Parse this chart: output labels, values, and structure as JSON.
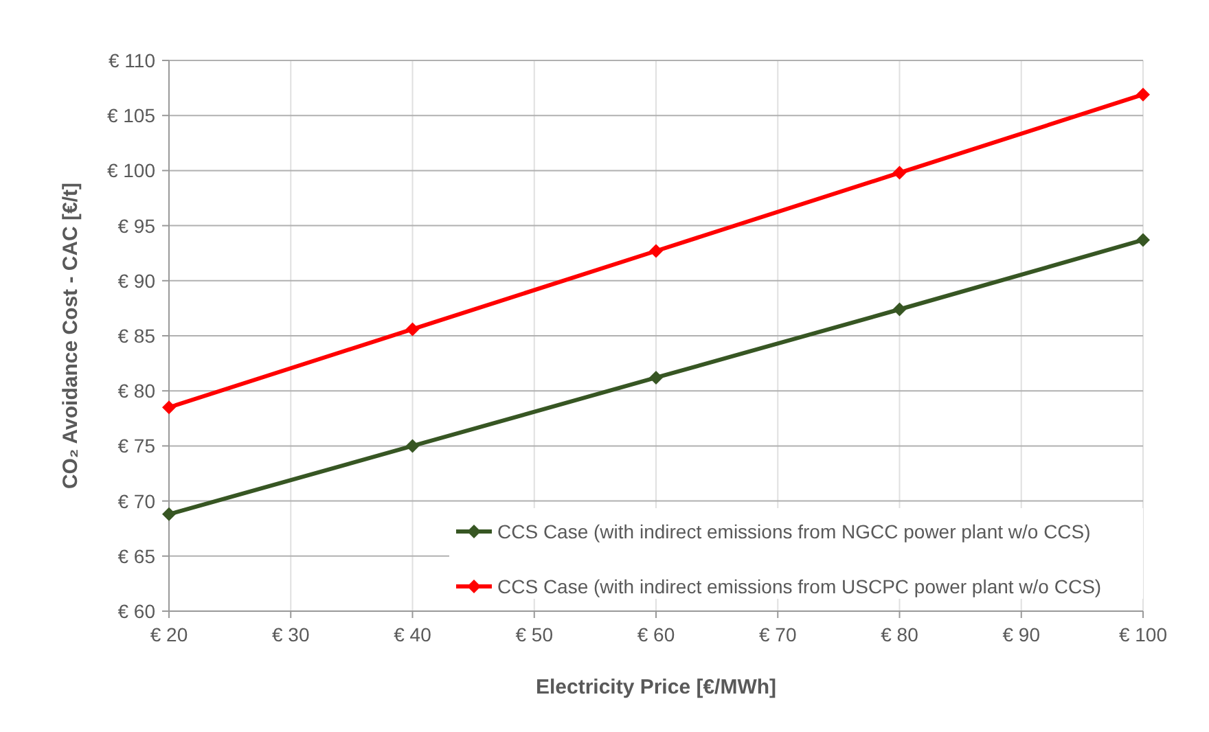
{
  "chart_data": {
    "type": "line",
    "xlabel": "Electricity Price [€/MWh]",
    "ylabel": "CO₂ Avoidance Cost - CAC [€/t]",
    "x": [
      20,
      40,
      60,
      80,
      100
    ],
    "series": [
      {
        "name": "CCS Case (with indirect emissions from NGCC power plant w/o CCS)",
        "color": "#375623",
        "values": [
          68.8,
          75.0,
          81.2,
          87.4,
          93.7
        ]
      },
      {
        "name": "CCS Case (with indirect emissions from USCPC power plant w/o CCS)",
        "color": "#ff0000",
        "values": [
          78.5,
          85.6,
          92.7,
          99.8,
          106.9
        ]
      }
    ],
    "xlim": [
      20,
      100
    ],
    "xticks": [
      {
        "value": 20,
        "label": "€ 20"
      },
      {
        "value": 30,
        "label": "€ 30"
      },
      {
        "value": 40,
        "label": "€ 40"
      },
      {
        "value": 50,
        "label": "€ 50"
      },
      {
        "value": 60,
        "label": "€ 60"
      },
      {
        "value": 70,
        "label": "€ 70"
      },
      {
        "value": 80,
        "label": "€ 80"
      },
      {
        "value": 90,
        "label": "€ 90"
      },
      {
        "value": 100,
        "label": "€ 100"
      }
    ],
    "ylim": [
      60,
      110
    ],
    "yticks": [
      {
        "value": 60,
        "label": "€ 60"
      },
      {
        "value": 65,
        "label": "€ 65"
      },
      {
        "value": 70,
        "label": "€ 70"
      },
      {
        "value": 75,
        "label": "€ 75"
      },
      {
        "value": 80,
        "label": "€ 80"
      },
      {
        "value": 85,
        "label": "€ 85"
      },
      {
        "value": 90,
        "label": "€ 90"
      },
      {
        "value": 95,
        "label": "€ 95"
      },
      {
        "value": 100,
        "label": "€ 100"
      },
      {
        "value": 105,
        "label": "€ 105"
      },
      {
        "value": 110,
        "label": "€ 110"
      }
    ],
    "grid": true,
    "legend": "bottom right",
    "marker": "diamond",
    "line_style": "solid"
  }
}
